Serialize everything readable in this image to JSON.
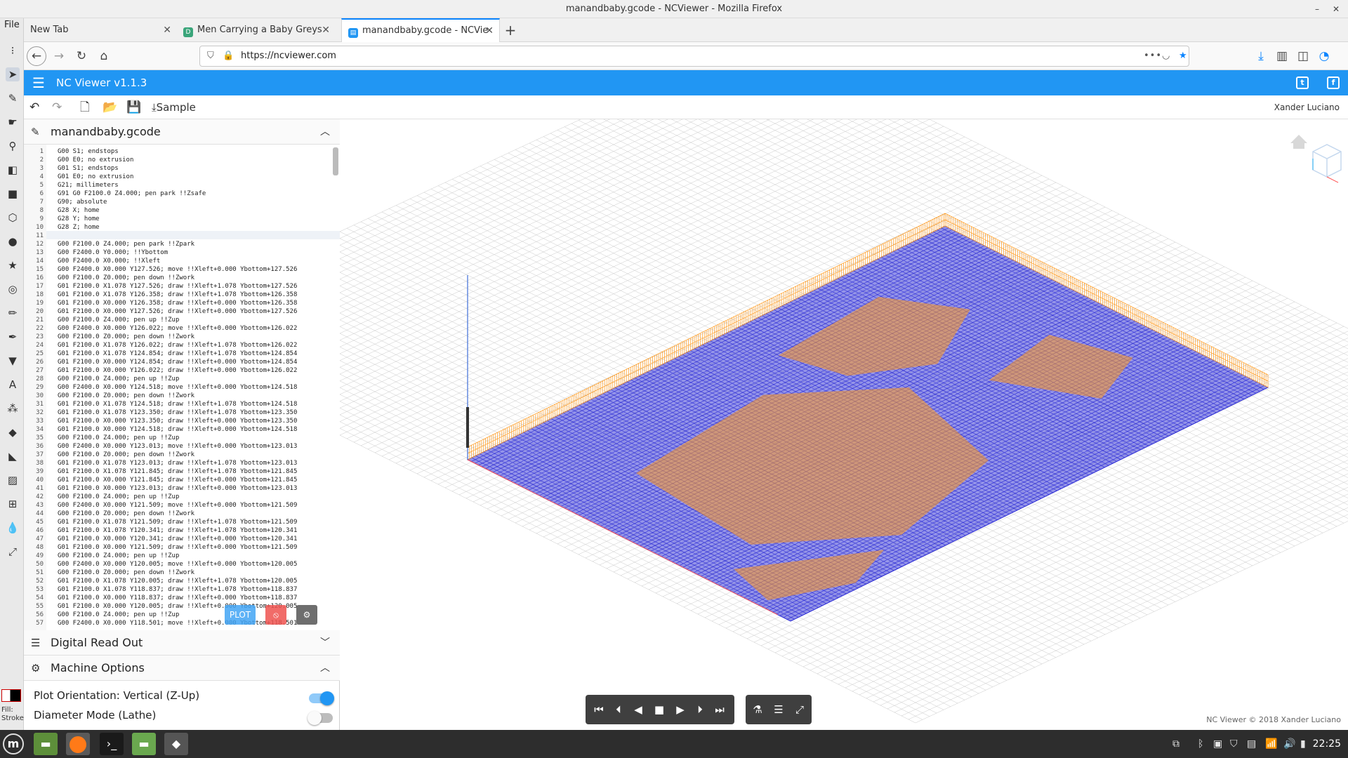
{
  "window": {
    "title": "manandbaby.gcode - NCViewer - Mozilla Firefox",
    "min": "–",
    "close": "✕"
  },
  "inkscape": {
    "menu_file": "File",
    "fill_label": "Fill:",
    "stroke_label": "Stroke"
  },
  "tabs": [
    {
      "label": "New Tab",
      "close": "✕"
    },
    {
      "label": "Men Carrying a Baby Greys",
      "close": "✕"
    },
    {
      "label": "manandbaby.gcode - NCVie",
      "close": "✕"
    }
  ],
  "newtab": "+",
  "nav": {
    "url": "https://ncviewer.com"
  },
  "app": {
    "title": "NC Viewer  v1.1.3",
    "sample_label": "Sample",
    "author": "Xander Luciano"
  },
  "file_panel": {
    "title": "manandbaby.gcode"
  },
  "code": [
    {
      "n": "1",
      "t": "G00 S1; endstops"
    },
    {
      "n": "2",
      "t": "G00 E0; no extrusion"
    },
    {
      "n": "3",
      "t": "G01 S1; endstops"
    },
    {
      "n": "4",
      "t": "G01 E0; no extrusion"
    },
    {
      "n": "5",
      "t": "G21; millimeters"
    },
    {
      "n": "6",
      "t": "G91 G0 F2100.0 Z4.000; pen park !!Zsafe"
    },
    {
      "n": "7",
      "t": "G90; absolute"
    },
    {
      "n": "8",
      "t": "G28 X; home"
    },
    {
      "n": "9",
      "t": "G28 Y; home"
    },
    {
      "n": "10",
      "t": "G28 Z; home"
    },
    {
      "n": "11",
      "t": ""
    },
    {
      "n": "12",
      "t": "G00 F2100.0 Z4.000; pen park !!Zpark"
    },
    {
      "n": "13",
      "t": "G00 F2400.0 Y0.000; !!Ybottom"
    },
    {
      "n": "14",
      "t": "G00 F2400.0 X0.000; !!Xleft"
    },
    {
      "n": "15",
      "t": "G00 F2400.0 X0.000 Y127.526; move !!Xleft+0.000 Ybottom+127.526"
    },
    {
      "n": "16",
      "t": "G00 F2100.0 Z0.000; pen down !!Zwork"
    },
    {
      "n": "17",
      "t": "G01 F2100.0 X1.078 Y127.526; draw !!Xleft+1.078 Ybottom+127.526"
    },
    {
      "n": "18",
      "t": "G01 F2100.0 X1.078 Y126.358; draw !!Xleft+1.078 Ybottom+126.358"
    },
    {
      "n": "19",
      "t": "G01 F2100.0 X0.000 Y126.358; draw !!Xleft+0.000 Ybottom+126.358"
    },
    {
      "n": "20",
      "t": "G01 F2100.0 X0.000 Y127.526; draw !!Xleft+0.000 Ybottom+127.526"
    },
    {
      "n": "21",
      "t": "G00 F2100.0 Z4.000; pen up !!Zup"
    },
    {
      "n": "22",
      "t": "G00 F2400.0 X0.000 Y126.022; move !!Xleft+0.000 Ybottom+126.022"
    },
    {
      "n": "23",
      "t": "G00 F2100.0 Z0.000; pen down !!Zwork"
    },
    {
      "n": "24",
      "t": "G01 F2100.0 X1.078 Y126.022; draw !!Xleft+1.078 Ybottom+126.022"
    },
    {
      "n": "25",
      "t": "G01 F2100.0 X1.078 Y124.854; draw !!Xleft+1.078 Ybottom+124.854"
    },
    {
      "n": "26",
      "t": "G01 F2100.0 X0.000 Y124.854; draw !!Xleft+0.000 Ybottom+124.854"
    },
    {
      "n": "27",
      "t": "G01 F2100.0 X0.000 Y126.022; draw !!Xleft+0.000 Ybottom+126.022"
    },
    {
      "n": "28",
      "t": "G00 F2100.0 Z4.000; pen up !!Zup"
    },
    {
      "n": "29",
      "t": "G00 F2400.0 X0.000 Y124.518; move !!Xleft+0.000 Ybottom+124.518"
    },
    {
      "n": "30",
      "t": "G00 F2100.0 Z0.000; pen down !!Zwork"
    },
    {
      "n": "31",
      "t": "G01 F2100.0 X1.078 Y124.518; draw !!Xleft+1.078 Ybottom+124.518"
    },
    {
      "n": "32",
      "t": "G01 F2100.0 X1.078 Y123.350; draw !!Xleft+1.078 Ybottom+123.350"
    },
    {
      "n": "33",
      "t": "G01 F2100.0 X0.000 Y123.350; draw !!Xleft+0.000 Ybottom+123.350"
    },
    {
      "n": "34",
      "t": "G01 F2100.0 X0.000 Y124.518; draw !!Xleft+0.000 Ybottom+124.518"
    },
    {
      "n": "35",
      "t": "G00 F2100.0 Z4.000; pen up !!Zup"
    },
    {
      "n": "36",
      "t": "G00 F2400.0 X0.000 Y123.013; move !!Xleft+0.000 Ybottom+123.013"
    },
    {
      "n": "37",
      "t": "G00 F2100.0 Z0.000; pen down !!Zwork"
    },
    {
      "n": "38",
      "t": "G01 F2100.0 X1.078 Y123.013; draw !!Xleft+1.078 Ybottom+123.013"
    },
    {
      "n": "39",
      "t": "G01 F2100.0 X1.078 Y121.845; draw !!Xleft+1.078 Ybottom+121.845"
    },
    {
      "n": "40",
      "t": "G01 F2100.0 X0.000 Y121.845; draw !!Xleft+0.000 Ybottom+121.845"
    },
    {
      "n": "41",
      "t": "G01 F2100.0 X0.000 Y123.013; draw !!Xleft+0.000 Ybottom+123.013"
    },
    {
      "n": "42",
      "t": "G00 F2100.0 Z4.000; pen up !!Zup"
    },
    {
      "n": "43",
      "t": "G00 F2400.0 X0.000 Y121.509; move !!Xleft+0.000 Ybottom+121.509"
    },
    {
      "n": "44",
      "t": "G00 F2100.0 Z0.000; pen down !!Zwork"
    },
    {
      "n": "45",
      "t": "G01 F2100.0 X1.078 Y121.509; draw !!Xleft+1.078 Ybottom+121.509"
    },
    {
      "n": "46",
      "t": "G01 F2100.0 X1.078 Y120.341; draw !!Xleft+1.078 Ybottom+120.341"
    },
    {
      "n": "47",
      "t": "G01 F2100.0 X0.000 Y120.341; draw !!Xleft+0.000 Ybottom+120.341"
    },
    {
      "n": "48",
      "t": "G01 F2100.0 X0.000 Y121.509; draw !!Xleft+0.000 Ybottom+121.509"
    },
    {
      "n": "49",
      "t": "G00 F2100.0 Z4.000; pen up !!Zup"
    },
    {
      "n": "50",
      "t": "G00 F2400.0 X0.000 Y120.005; move !!Xleft+0.000 Ybottom+120.005"
    },
    {
      "n": "51",
      "t": "G00 F2100.0 Z0.000; pen down !!Zwork"
    },
    {
      "n": "52",
      "t": "G01 F2100.0 X1.078 Y120.005; draw !!Xleft+1.078 Ybottom+120.005"
    },
    {
      "n": "53",
      "t": "G01 F2100.0 X1.078 Y118.837; draw !!Xleft+1.078 Ybottom+118.837"
    },
    {
      "n": "54",
      "t": "G01 F2100.0 X0.000 Y118.837; draw !!Xleft+0.000 Ybottom+118.837"
    },
    {
      "n": "55",
      "t": "G01 F2100.0 X0.000 Y120.005; draw !!Xleft+0.000 Ybottom+120.005"
    },
    {
      "n": "56",
      "t": "G00 F2100.0 Z4.000; pen up !!Zup"
    },
    {
      "n": "57",
      "t": "G00 F2400.0 X0.000 Y118.501; move !!Xleft+0.000 Ybottom+118.501"
    }
  ],
  "plot": {
    "plot_label": "PLOT"
  },
  "dro": {
    "title": "Digital Read Out"
  },
  "machine": {
    "title": "Machine Options",
    "orientation_label": "Plot Orientation:",
    "orientation_value": "Vertical (Z-Up)",
    "orientation_on": true,
    "diameter_label": "Diameter Mode (Lathe)",
    "diameter_on": false
  },
  "viewport": {
    "copyright": "NC Viewer © 2018 Xander Luciano"
  },
  "colors": {
    "accent": "#2196f3",
    "draw": "#2b2bd6",
    "travel": "#ff9a1f",
    "grid": "#c9c9c9"
  },
  "taskbar": {
    "clock": "22:25"
  }
}
